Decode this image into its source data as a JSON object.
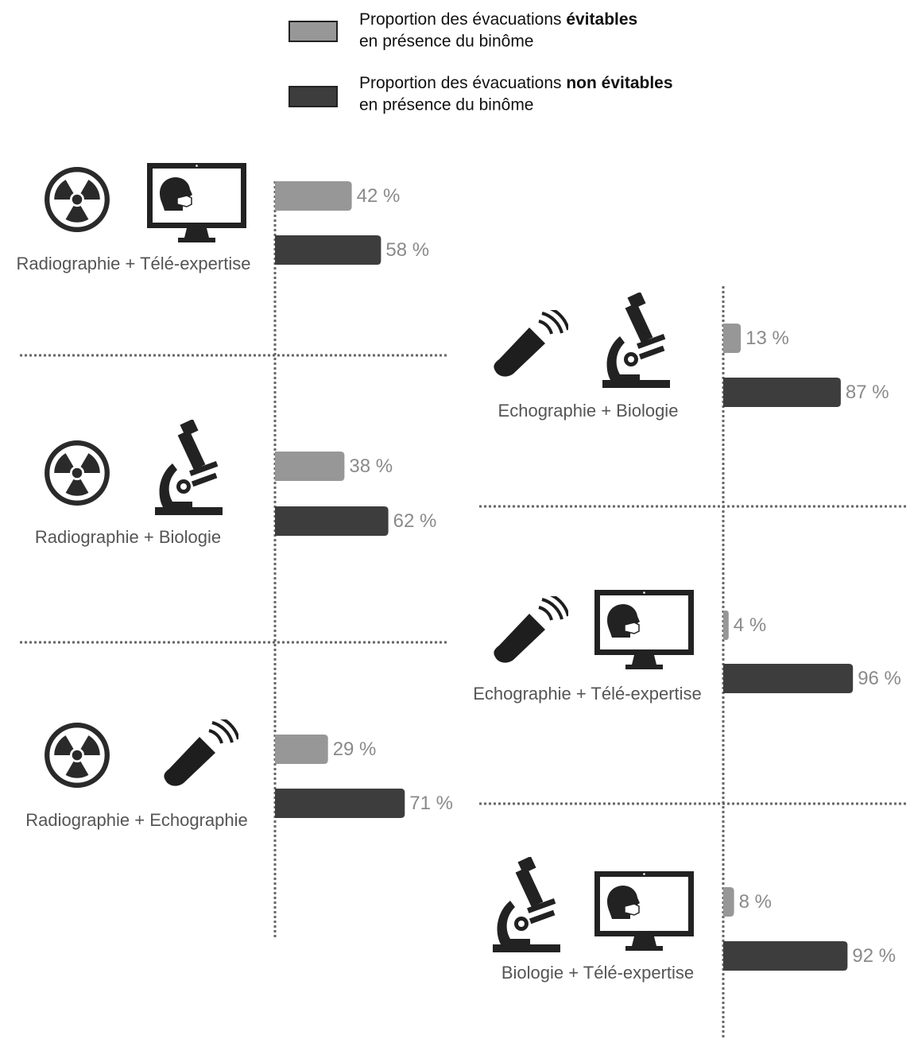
{
  "chart_data": {
    "type": "bar",
    "orientation": "horizontal",
    "categories": [
      "Radiographie + Télé-expertise",
      "Radiographie + Biologie",
      "Radiographie + Echographie",
      "Echographie + Biologie",
      "Echographie + Télé-expertise",
      "Biologie + Télé-expertise"
    ],
    "series": [
      {
        "name_parts": [
          "Proportion des évacuations ",
          "évitables",
          "en présence du binôme"
        ],
        "color": "#979797",
        "values": [
          42,
          38,
          29,
          13,
          4,
          8
        ],
        "value_labels": [
          "42 %",
          "38 %",
          "29 %",
          "13 %",
          "4 %",
          "8 %"
        ]
      },
      {
        "name_parts": [
          "Proportion des évacuations ",
          "non évitables",
          "en présence du binôme"
        ],
        "color": "#3d3d3d",
        "values": [
          58,
          62,
          71,
          87,
          96,
          92
        ],
        "value_labels": [
          "58 %",
          "62 %",
          "71 %",
          "87 %",
          "96 %",
          "92 %"
        ]
      }
    ],
    "xlim": [
      0,
      100
    ]
  }
}
